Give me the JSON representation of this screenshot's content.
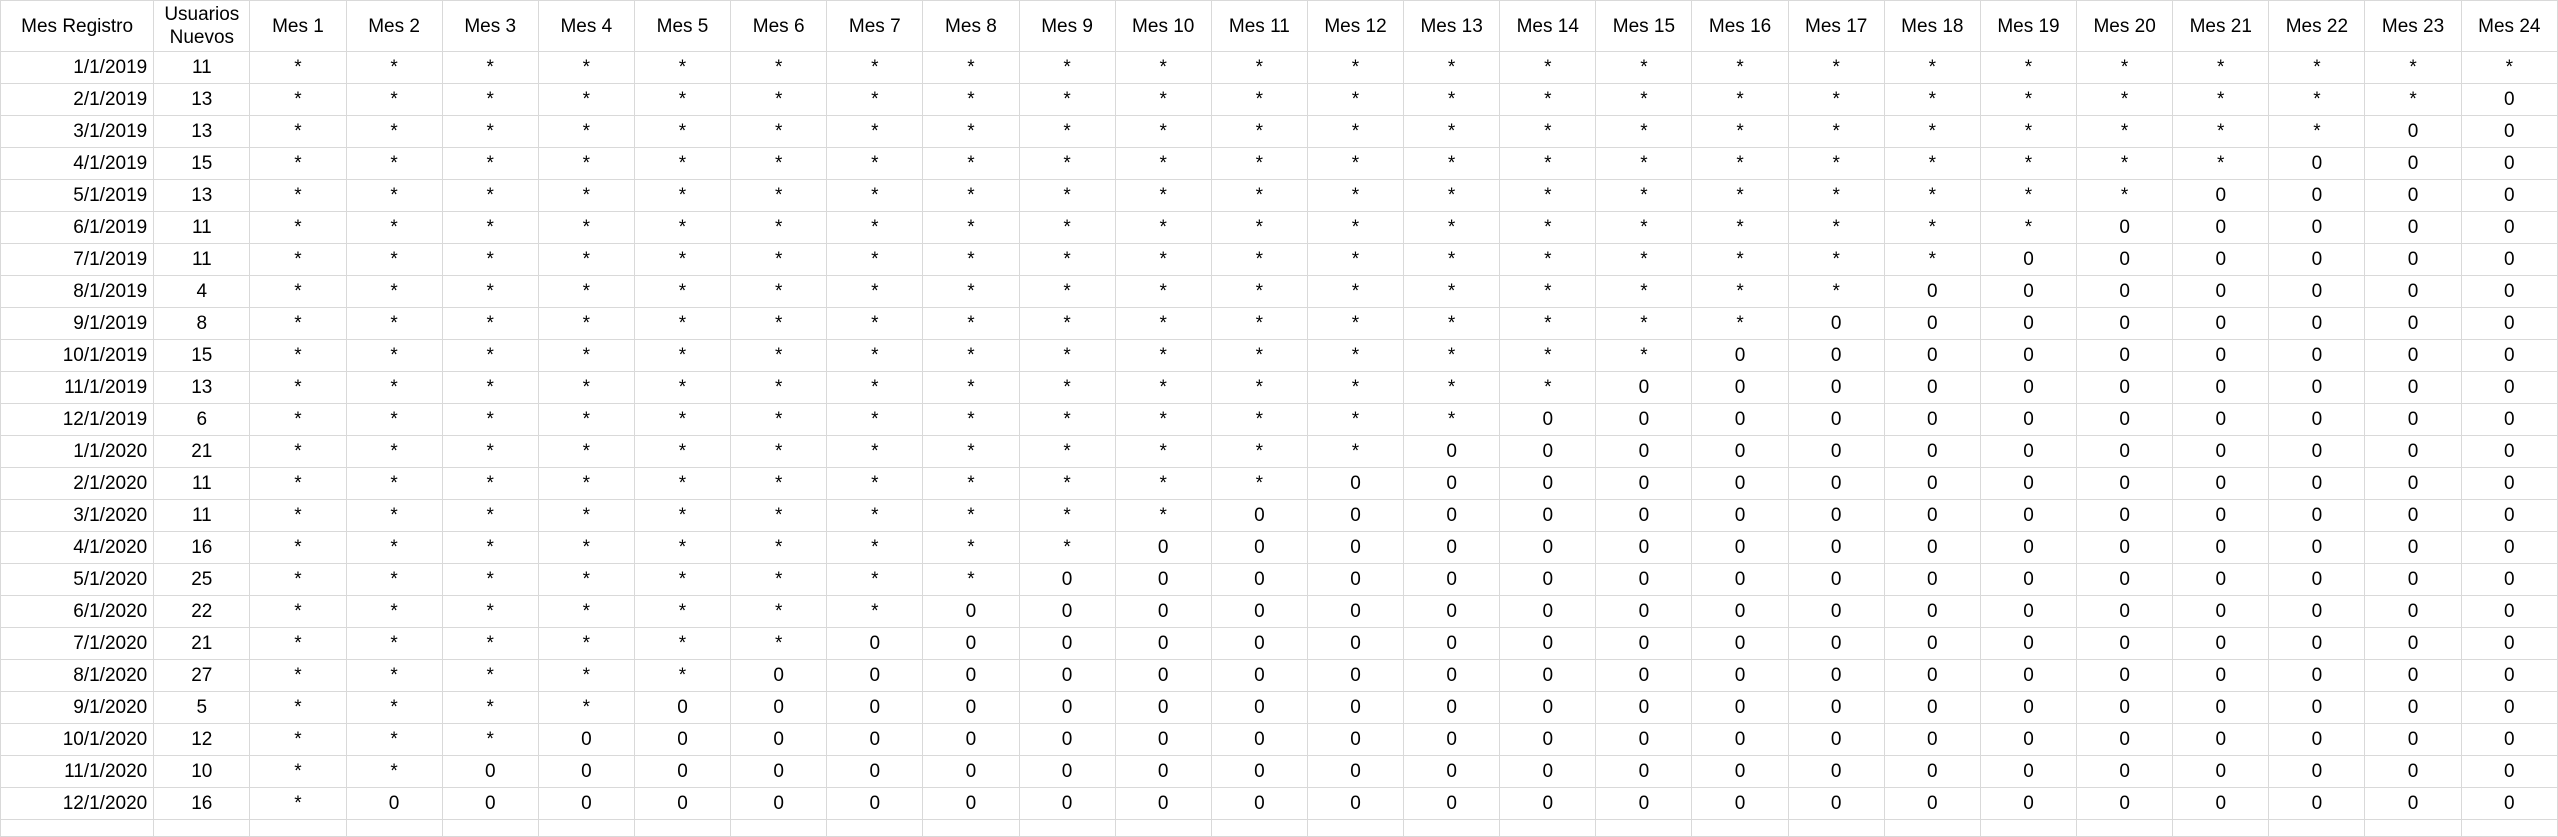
{
  "table": {
    "headers": [
      "Mes Registro",
      "Usuarios Nuevos",
      "Mes 1",
      "Mes 2",
      "Mes 3",
      "Mes 4",
      "Mes 5",
      "Mes 6",
      "Mes 7",
      "Mes 8",
      "Mes 9",
      "Mes 10",
      "Mes 11",
      "Mes 12",
      "Mes 13",
      "Mes 14",
      "Mes 15",
      "Mes 16",
      "Mes 17",
      "Mes 18",
      "Mes 19",
      "Mes 20",
      "Mes 21",
      "Mes 22",
      "Mes 23",
      "Mes 24"
    ],
    "rows": [
      [
        "1/1/2019",
        "11",
        "*",
        "*",
        "*",
        "*",
        "*",
        "*",
        "*",
        "*",
        "*",
        "*",
        "*",
        "*",
        "*",
        "*",
        "*",
        "*",
        "*",
        "*",
        "*",
        "*",
        "*",
        "*",
        "*",
        "*"
      ],
      [
        "2/1/2019",
        "13",
        "*",
        "*",
        "*",
        "*",
        "*",
        "*",
        "*",
        "*",
        "*",
        "*",
        "*",
        "*",
        "*",
        "*",
        "*",
        "*",
        "*",
        "*",
        "*",
        "*",
        "*",
        "*",
        "*",
        "0"
      ],
      [
        "3/1/2019",
        "13",
        "*",
        "*",
        "*",
        "*",
        "*",
        "*",
        "*",
        "*",
        "*",
        "*",
        "*",
        "*",
        "*",
        "*",
        "*",
        "*",
        "*",
        "*",
        "*",
        "*",
        "*",
        "*",
        "0",
        "0"
      ],
      [
        "4/1/2019",
        "15",
        "*",
        "*",
        "*",
        "*",
        "*",
        "*",
        "*",
        "*",
        "*",
        "*",
        "*",
        "*",
        "*",
        "*",
        "*",
        "*",
        "*",
        "*",
        "*",
        "*",
        "*",
        "0",
        "0",
        "0"
      ],
      [
        "5/1/2019",
        "13",
        "*",
        "*",
        "*",
        "*",
        "*",
        "*",
        "*",
        "*",
        "*",
        "*",
        "*",
        "*",
        "*",
        "*",
        "*",
        "*",
        "*",
        "*",
        "*",
        "*",
        "0",
        "0",
        "0",
        "0"
      ],
      [
        "6/1/2019",
        "11",
        "*",
        "*",
        "*",
        "*",
        "*",
        "*",
        "*",
        "*",
        "*",
        "*",
        "*",
        "*",
        "*",
        "*",
        "*",
        "*",
        "*",
        "*",
        "*",
        "0",
        "0",
        "0",
        "0",
        "0"
      ],
      [
        "7/1/2019",
        "11",
        "*",
        "*",
        "*",
        "*",
        "*",
        "*",
        "*",
        "*",
        "*",
        "*",
        "*",
        "*",
        "*",
        "*",
        "*",
        "*",
        "*",
        "*",
        "0",
        "0",
        "0",
        "0",
        "0",
        "0"
      ],
      [
        "8/1/2019",
        "4",
        "*",
        "*",
        "*",
        "*",
        "*",
        "*",
        "*",
        "*",
        "*",
        "*",
        "*",
        "*",
        "*",
        "*",
        "*",
        "*",
        "*",
        "0",
        "0",
        "0",
        "0",
        "0",
        "0",
        "0"
      ],
      [
        "9/1/2019",
        "8",
        "*",
        "*",
        "*",
        "*",
        "*",
        "*",
        "*",
        "*",
        "*",
        "*",
        "*",
        "*",
        "*",
        "*",
        "*",
        "*",
        "0",
        "0",
        "0",
        "0",
        "0",
        "0",
        "0",
        "0"
      ],
      [
        "10/1/2019",
        "15",
        "*",
        "*",
        "*",
        "*",
        "*",
        "*",
        "*",
        "*",
        "*",
        "*",
        "*",
        "*",
        "*",
        "*",
        "*",
        "0",
        "0",
        "0",
        "0",
        "0",
        "0",
        "0",
        "0",
        "0"
      ],
      [
        "11/1/2019",
        "13",
        "*",
        "*",
        "*",
        "*",
        "*",
        "*",
        "*",
        "*",
        "*",
        "*",
        "*",
        "*",
        "*",
        "*",
        "0",
        "0",
        "0",
        "0",
        "0",
        "0",
        "0",
        "0",
        "0",
        "0"
      ],
      [
        "12/1/2019",
        "6",
        "*",
        "*",
        "*",
        "*",
        "*",
        "*",
        "*",
        "*",
        "*",
        "*",
        "*",
        "*",
        "*",
        "0",
        "0",
        "0",
        "0",
        "0",
        "0",
        "0",
        "0",
        "0",
        "0",
        "0"
      ],
      [
        "1/1/2020",
        "21",
        "*",
        "*",
        "*",
        "*",
        "*",
        "*",
        "*",
        "*",
        "*",
        "*",
        "*",
        "*",
        "0",
        "0",
        "0",
        "0",
        "0",
        "0",
        "0",
        "0",
        "0",
        "0",
        "0",
        "0"
      ],
      [
        "2/1/2020",
        "11",
        "*",
        "*",
        "*",
        "*",
        "*",
        "*",
        "*",
        "*",
        "*",
        "*",
        "*",
        "0",
        "0",
        "0",
        "0",
        "0",
        "0",
        "0",
        "0",
        "0",
        "0",
        "0",
        "0",
        "0"
      ],
      [
        "3/1/2020",
        "11",
        "*",
        "*",
        "*",
        "*",
        "*",
        "*",
        "*",
        "*",
        "*",
        "*",
        "0",
        "0",
        "0",
        "0",
        "0",
        "0",
        "0",
        "0",
        "0",
        "0",
        "0",
        "0",
        "0",
        "0"
      ],
      [
        "4/1/2020",
        "16",
        "*",
        "*",
        "*",
        "*",
        "*",
        "*",
        "*",
        "*",
        "*",
        "0",
        "0",
        "0",
        "0",
        "0",
        "0",
        "0",
        "0",
        "0",
        "0",
        "0",
        "0",
        "0",
        "0",
        "0"
      ],
      [
        "5/1/2020",
        "25",
        "*",
        "*",
        "*",
        "*",
        "*",
        "*",
        "*",
        "*",
        "0",
        "0",
        "0",
        "0",
        "0",
        "0",
        "0",
        "0",
        "0",
        "0",
        "0",
        "0",
        "0",
        "0",
        "0",
        "0"
      ],
      [
        "6/1/2020",
        "22",
        "*",
        "*",
        "*",
        "*",
        "*",
        "*",
        "*",
        "0",
        "0",
        "0",
        "0",
        "0",
        "0",
        "0",
        "0",
        "0",
        "0",
        "0",
        "0",
        "0",
        "0",
        "0",
        "0",
        "0"
      ],
      [
        "7/1/2020",
        "21",
        "*",
        "*",
        "*",
        "*",
        "*",
        "*",
        "0",
        "0",
        "0",
        "0",
        "0",
        "0",
        "0",
        "0",
        "0",
        "0",
        "0",
        "0",
        "0",
        "0",
        "0",
        "0",
        "0",
        "0"
      ],
      [
        "8/1/2020",
        "27",
        "*",
        "*",
        "*",
        "*",
        "*",
        "0",
        "0",
        "0",
        "0",
        "0",
        "0",
        "0",
        "0",
        "0",
        "0",
        "0",
        "0",
        "0",
        "0",
        "0",
        "0",
        "0",
        "0",
        "0"
      ],
      [
        "9/1/2020",
        "5",
        "*",
        "*",
        "*",
        "*",
        "0",
        "0",
        "0",
        "0",
        "0",
        "0",
        "0",
        "0",
        "0",
        "0",
        "0",
        "0",
        "0",
        "0",
        "0",
        "0",
        "0",
        "0",
        "0",
        "0"
      ],
      [
        "10/1/2020",
        "12",
        "*",
        "*",
        "*",
        "0",
        "0",
        "0",
        "0",
        "0",
        "0",
        "0",
        "0",
        "0",
        "0",
        "0",
        "0",
        "0",
        "0",
        "0",
        "0",
        "0",
        "0",
        "0",
        "0",
        "0"
      ],
      [
        "11/1/2020",
        "10",
        "*",
        "*",
        "0",
        "0",
        "0",
        "0",
        "0",
        "0",
        "0",
        "0",
        "0",
        "0",
        "0",
        "0",
        "0",
        "0",
        "0",
        "0",
        "0",
        "0",
        "0",
        "0",
        "0",
        "0"
      ],
      [
        "12/1/2020",
        "16",
        "*",
        "0",
        "0",
        "0",
        "0",
        "0",
        "0",
        "0",
        "0",
        "0",
        "0",
        "0",
        "0",
        "0",
        "0",
        "0",
        "0",
        "0",
        "0",
        "0",
        "0",
        "0",
        "0",
        "0"
      ]
    ]
  }
}
